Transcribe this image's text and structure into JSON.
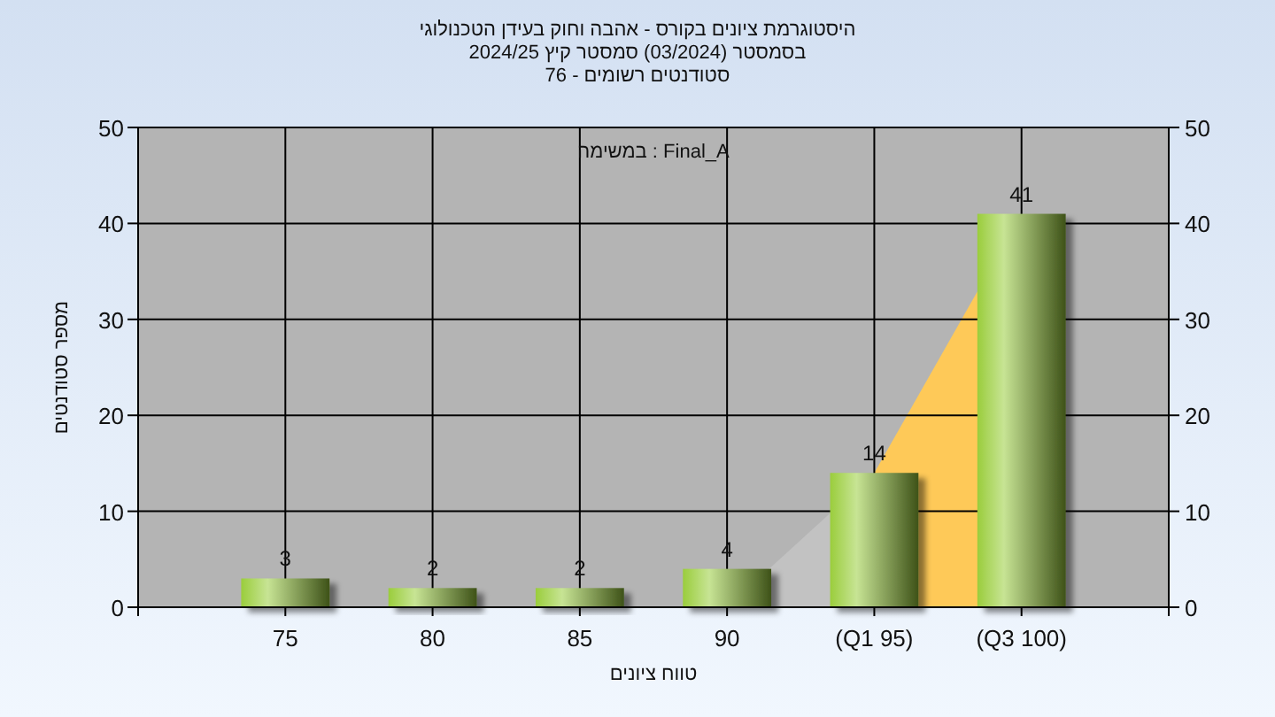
{
  "chart_data": {
    "type": "bar",
    "title": "היסטוגרמת ציונים בקורס - אהבה וחוק בעידן הטכנולוגי",
    "subtitle": "בסמסטר (03/2024) סמסטר קיץ 2024/25\nסטודנטים רשומים - 76",
    "xlabel": "טווח ציונים",
    "ylabel": "מספר סטודנטים",
    "categories": [
      "75",
      "80",
      "85",
      "90",
      "(Q1 95)",
      "(Q3 100)"
    ],
    "series": [
      {
        "type": "area",
        "color": "#c2c2c2",
        "values": [
          null,
          null,
          null,
          0,
          14,
          null
        ]
      },
      {
        "type": "area",
        "color": "#fec958",
        "values": [
          null,
          null,
          null,
          null,
          14,
          41
        ]
      },
      {
        "color": "#9acd3c",
        "values": [
          3,
          2,
          2,
          4,
          14,
          41
        ],
        "value_labels": [
          "3",
          "2",
          "2",
          "4",
          "14",
          "41"
        ]
      }
    ],
    "ylim": [
      0,
      50
    ],
    "yticks": [
      0,
      10,
      20,
      30,
      40,
      50
    ],
    "y2lim": [
      0,
      50
    ],
    "y2ticks": [
      0,
      10,
      20,
      30,
      40,
      50
    ],
    "grid": true,
    "annotations": [
      "במשימה : Final_A"
    ]
  }
}
